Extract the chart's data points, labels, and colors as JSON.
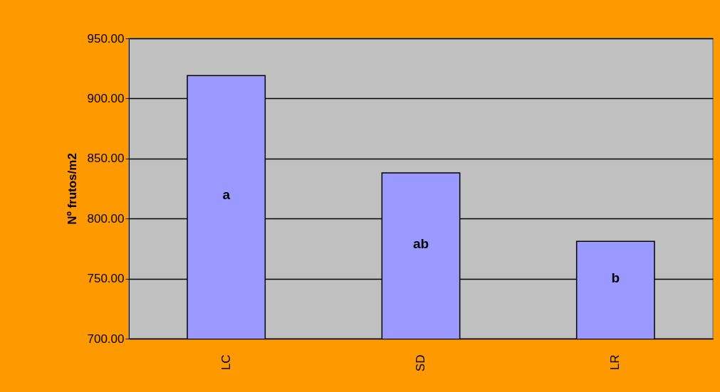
{
  "chart_data": {
    "type": "bar",
    "ylabel": "Nº frutos/m2",
    "categories": [
      "LC",
      "SD",
      "LR"
    ],
    "values": [
      919,
      838,
      781
    ],
    "color": "#9999ff",
    "ylim": [
      700,
      950
    ],
    "yticks": [
      {
        "value": 700,
        "label": "700.00"
      },
      {
        "value": 750,
        "label": "750.00"
      },
      {
        "value": 800,
        "label": "800.00"
      },
      {
        "value": 850,
        "label": "850.00"
      },
      {
        "value": 900,
        "label": "900.00"
      },
      {
        "value": 950,
        "label": "950.00"
      }
    ],
    "grid": "y",
    "annotations": [
      "a",
      "ab",
      "b"
    ]
  }
}
